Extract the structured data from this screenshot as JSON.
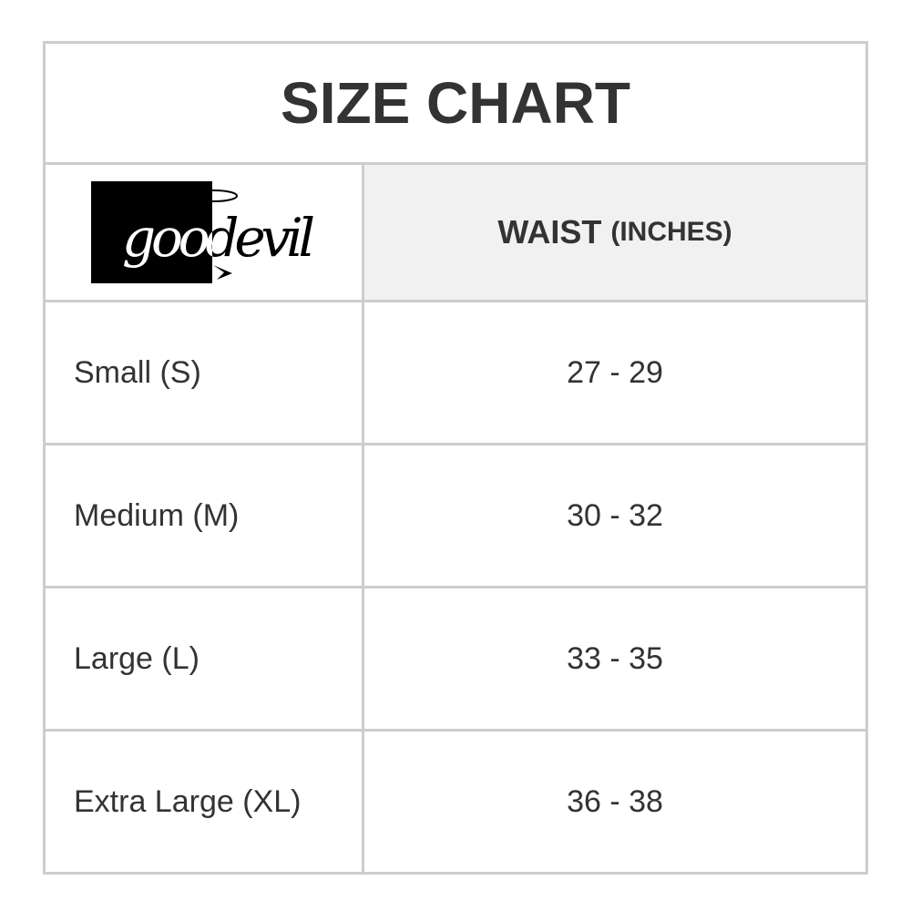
{
  "title": "SIZE CHART",
  "logo": {
    "text": "goodevil",
    "colors": {
      "box": "#000000",
      "text_on_box": "#ffffff"
    }
  },
  "header": {
    "column": "WAIST",
    "unit": "(INCHES)"
  },
  "rows": [
    {
      "size": "Small (S)",
      "waist": "27 - 29"
    },
    {
      "size": "Medium (M)",
      "waist": "30 - 32"
    },
    {
      "size": "Large (L)",
      "waist": "33 - 35"
    },
    {
      "size": "Extra Large (XL)",
      "waist": "36 - 38"
    }
  ]
}
